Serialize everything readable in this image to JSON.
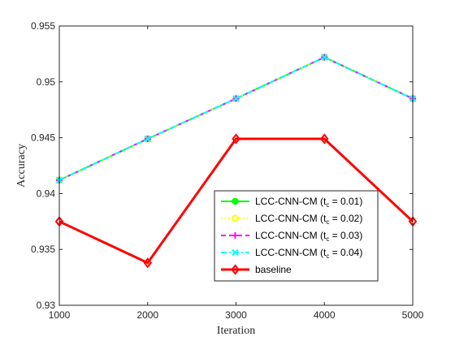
{
  "chart_data": {
    "type": "line",
    "xlabel": "Iteration",
    "ylabel": "Accuracy",
    "x": [
      1000,
      2000,
      3000,
      4000,
      5000
    ],
    "xlim": [
      1000,
      5000
    ],
    "ylim": [
      0.93,
      0.955
    ],
    "xticks": [
      "1000",
      "2000",
      "3000",
      "4000",
      "5000"
    ],
    "yticks": [
      "0.93",
      "0.935",
      "0.94",
      "0.945",
      "0.95",
      "0.955"
    ],
    "ytick_values": [
      0.93,
      0.935,
      0.94,
      0.945,
      0.95,
      0.955
    ],
    "grid": false,
    "legend_position": "bottom-right",
    "series": [
      {
        "legend_main": "LCC-CNN-CM (t",
        "legend_sub": "c",
        "legend_tail": " = 0.01)",
        "values": [
          0.9412,
          0.9449,
          0.9485,
          0.9522,
          0.9485
        ],
        "color": "#00ff00",
        "dash": "solid",
        "marker": "circle-filled"
      },
      {
        "legend_main": "LCC-CNN-CM (t",
        "legend_sub": "c",
        "legend_tail": " = 0.02)",
        "values": [
          0.9412,
          0.9449,
          0.9485,
          0.9522,
          0.9485
        ],
        "color": "#ffff00",
        "dash": "dotted",
        "marker": "circle-open"
      },
      {
        "legend_main": "LCC-CNN-CM (t",
        "legend_sub": "c",
        "legend_tail": " = 0.03)",
        "values": [
          0.9412,
          0.9449,
          0.9485,
          0.9522,
          0.9485
        ],
        "color": "#ff00ff",
        "dash": "dashed",
        "marker": "plus"
      },
      {
        "legend_main": "LCC-CNN-CM (t",
        "legend_sub": "c",
        "legend_tail": " = 0.04)",
        "values": [
          0.9412,
          0.9449,
          0.9485,
          0.9522,
          0.9485
        ],
        "color": "#00ffff",
        "dash": "dashdot",
        "marker": "x"
      },
      {
        "legend_main": "baseline",
        "legend_sub": "",
        "legend_tail": "",
        "values": [
          0.9375,
          0.9338,
          0.9449,
          0.9449,
          0.9375
        ],
        "color": "#ff0000",
        "dash": "solid",
        "marker": "diamond"
      }
    ]
  }
}
